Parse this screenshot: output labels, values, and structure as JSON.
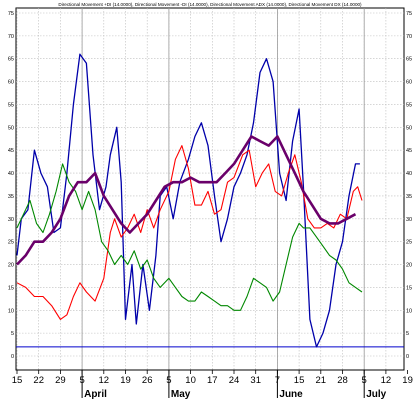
{
  "chart_data": {
    "type": "line",
    "title": "Directional Movement +DI (14.0000), Directional Movement -DI (14.0000), Directional Movement ADX (14.0000), Directional Movement DX (14.0000)",
    "ylim": [
      0,
      75
    ],
    "grid": true,
    "y_ticks": [
      0,
      5,
      10,
      15,
      20,
      25,
      30,
      35,
      40,
      45,
      50,
      55,
      60,
      65,
      70,
      75
    ],
    "x_tick_labels": [
      "15",
      "22",
      "29",
      "5",
      "12",
      "19",
      "26",
      "5",
      "10",
      "17",
      "24",
      "31",
      "7",
      "15",
      "21",
      "28",
      "5",
      "12",
      "19"
    ],
    "x_tick_positions": [
      0,
      1,
      2,
      3,
      4,
      5,
      6,
      7,
      8,
      9,
      10,
      11,
      12,
      13,
      14,
      15,
      16,
      17,
      18
    ],
    "month_labels": [
      {
        "label": "April",
        "pos": 3
      },
      {
        "label": "May",
        "pos": 7
      },
      {
        "label": "June",
        "pos": 12
      },
      {
        "label": "July",
        "pos": 16
      }
    ],
    "month_lines": [
      3,
      7,
      12,
      16
    ],
    "reference_line": {
      "value": 2,
      "color": "#0000cc"
    },
    "series": [
      {
        "color": "#0000aa",
        "width": 1.3,
        "points": [
          [
            0,
            22
          ],
          [
            0.2,
            30
          ],
          [
            0.5,
            32
          ],
          [
            0.8,
            45
          ],
          [
            1.1,
            40
          ],
          [
            1.4,
            37
          ],
          [
            1.7,
            27
          ],
          [
            2.0,
            28
          ],
          [
            2.3,
            40
          ],
          [
            2.6,
            55
          ],
          [
            2.9,
            66
          ],
          [
            3.2,
            64
          ],
          [
            3.5,
            44
          ],
          [
            3.8,
            32
          ],
          [
            4.1,
            37
          ],
          [
            4.3,
            44
          ],
          [
            4.6,
            50
          ],
          [
            4.8,
            38
          ],
          [
            5.0,
            8
          ],
          [
            5.3,
            20
          ],
          [
            5.5,
            7
          ],
          [
            5.8,
            20
          ],
          [
            6.1,
            10
          ],
          [
            6.4,
            22
          ],
          [
            6.6,
            35
          ],
          [
            6.9,
            37
          ],
          [
            7.2,
            30
          ],
          [
            7.5,
            38
          ],
          [
            7.9,
            43
          ],
          [
            8.2,
            48
          ],
          [
            8.5,
            51
          ],
          [
            8.8,
            46
          ],
          [
            9.1,
            35
          ],
          [
            9.4,
            25
          ],
          [
            9.7,
            30
          ],
          [
            10.0,
            37
          ],
          [
            10.3,
            40
          ],
          [
            10.6,
            44
          ],
          [
            10.9,
            51
          ],
          [
            11.2,
            62
          ],
          [
            11.5,
            65
          ],
          [
            11.8,
            60
          ],
          [
            12.1,
            40
          ],
          [
            12.4,
            34
          ],
          [
            12.7,
            47
          ],
          [
            13.0,
            54
          ],
          [
            13.2,
            37
          ],
          [
            13.5,
            8
          ],
          [
            13.8,
            2
          ],
          [
            14.1,
            5
          ],
          [
            14.4,
            10
          ],
          [
            14.7,
            20
          ],
          [
            15.0,
            25
          ],
          [
            15.3,
            35
          ],
          [
            15.6,
            42
          ],
          [
            15.8,
            42
          ]
        ]
      },
      {
        "color": "#ff0000",
        "width": 1.1,
        "points": [
          [
            0,
            16
          ],
          [
            0.4,
            15
          ],
          [
            0.8,
            13
          ],
          [
            1.2,
            13
          ],
          [
            1.6,
            11
          ],
          [
            2.0,
            8
          ],
          [
            2.3,
            9
          ],
          [
            2.6,
            13
          ],
          [
            2.9,
            16
          ],
          [
            3.2,
            14
          ],
          [
            3.6,
            12
          ],
          [
            4.0,
            17
          ],
          [
            4.3,
            27
          ],
          [
            4.5,
            30
          ],
          [
            4.8,
            26
          ],
          [
            5.1,
            28
          ],
          [
            5.4,
            31
          ],
          [
            5.7,
            27
          ],
          [
            6.0,
            32
          ],
          [
            6.3,
            28
          ],
          [
            6.6,
            32
          ],
          [
            7.0,
            36
          ],
          [
            7.3,
            43
          ],
          [
            7.6,
            46
          ],
          [
            7.9,
            41
          ],
          [
            8.2,
            33
          ],
          [
            8.5,
            33
          ],
          [
            8.8,
            36
          ],
          [
            9.1,
            31
          ],
          [
            9.4,
            32
          ],
          [
            9.7,
            38
          ],
          [
            10.0,
            39
          ],
          [
            10.4,
            44
          ],
          [
            10.7,
            45
          ],
          [
            11.0,
            37
          ],
          [
            11.3,
            40
          ],
          [
            11.6,
            42
          ],
          [
            11.9,
            36
          ],
          [
            12.2,
            35
          ],
          [
            12.5,
            40
          ],
          [
            12.8,
            44
          ],
          [
            13.1,
            38
          ],
          [
            13.4,
            30
          ],
          [
            13.7,
            28
          ],
          [
            14.0,
            28
          ],
          [
            14.3,
            29
          ],
          [
            14.6,
            28
          ],
          [
            14.9,
            31
          ],
          [
            15.2,
            30
          ],
          [
            15.5,
            36
          ],
          [
            15.7,
            37
          ],
          [
            15.9,
            34
          ]
        ]
      },
      {
        "color": "#008800",
        "width": 1.1,
        "points": [
          [
            0,
            28
          ],
          [
            0.3,
            31
          ],
          [
            0.6,
            34
          ],
          [
            0.9,
            29
          ],
          [
            1.2,
            27
          ],
          [
            1.5,
            31
          ],
          [
            1.8,
            36
          ],
          [
            2.1,
            42
          ],
          [
            2.4,
            38
          ],
          [
            2.7,
            36
          ],
          [
            3.0,
            32
          ],
          [
            3.3,
            36
          ],
          [
            3.6,
            32
          ],
          [
            3.9,
            25
          ],
          [
            4.2,
            23
          ],
          [
            4.5,
            20
          ],
          [
            4.8,
            22
          ],
          [
            5.1,
            20
          ],
          [
            5.4,
            23
          ],
          [
            5.7,
            19
          ],
          [
            6.0,
            21
          ],
          [
            6.3,
            17
          ],
          [
            6.6,
            15
          ],
          [
            7.0,
            17
          ],
          [
            7.3,
            15
          ],
          [
            7.6,
            13
          ],
          [
            7.9,
            12
          ],
          [
            8.2,
            12
          ],
          [
            8.5,
            14
          ],
          [
            8.8,
            13
          ],
          [
            9.1,
            12
          ],
          [
            9.4,
            11
          ],
          [
            9.7,
            11
          ],
          [
            10.0,
            10
          ],
          [
            10.3,
            10
          ],
          [
            10.6,
            13
          ],
          [
            10.9,
            17
          ],
          [
            11.2,
            16
          ],
          [
            11.5,
            15
          ],
          [
            11.8,
            12
          ],
          [
            12.1,
            14
          ],
          [
            12.4,
            20
          ],
          [
            12.7,
            26
          ],
          [
            13.0,
            29
          ],
          [
            13.2,
            28
          ],
          [
            13.5,
            28
          ],
          [
            13.8,
            26
          ],
          [
            14.1,
            24
          ],
          [
            14.4,
            22
          ],
          [
            14.7,
            21
          ],
          [
            15.0,
            19
          ],
          [
            15.3,
            16
          ],
          [
            15.6,
            15
          ],
          [
            15.9,
            14
          ]
        ]
      },
      {
        "color": "#6a006a",
        "width": 2.6,
        "points": [
          [
            0,
            20
          ],
          [
            0.4,
            22
          ],
          [
            0.8,
            25
          ],
          [
            1.2,
            25
          ],
          [
            1.6,
            27
          ],
          [
            2.0,
            30
          ],
          [
            2.4,
            35
          ],
          [
            2.8,
            38
          ],
          [
            3.2,
            38
          ],
          [
            3.6,
            40
          ],
          [
            4.0,
            35
          ],
          [
            4.4,
            32
          ],
          [
            4.8,
            29
          ],
          [
            5.2,
            27
          ],
          [
            5.6,
            29
          ],
          [
            6.0,
            31
          ],
          [
            6.4,
            34
          ],
          [
            6.8,
            37
          ],
          [
            7.2,
            38
          ],
          [
            7.6,
            38
          ],
          [
            8.0,
            39
          ],
          [
            8.4,
            38
          ],
          [
            8.8,
            38
          ],
          [
            9.2,
            38
          ],
          [
            9.6,
            40
          ],
          [
            10.0,
            42
          ],
          [
            10.4,
            45
          ],
          [
            10.8,
            48
          ],
          [
            11.2,
            47
          ],
          [
            11.6,
            46
          ],
          [
            12.0,
            48
          ],
          [
            12.4,
            44
          ],
          [
            12.8,
            40
          ],
          [
            13.2,
            36
          ],
          [
            13.6,
            33
          ],
          [
            14.0,
            30
          ],
          [
            14.4,
            29
          ],
          [
            14.8,
            29
          ],
          [
            15.2,
            30
          ],
          [
            15.6,
            31
          ]
        ]
      }
    ]
  }
}
